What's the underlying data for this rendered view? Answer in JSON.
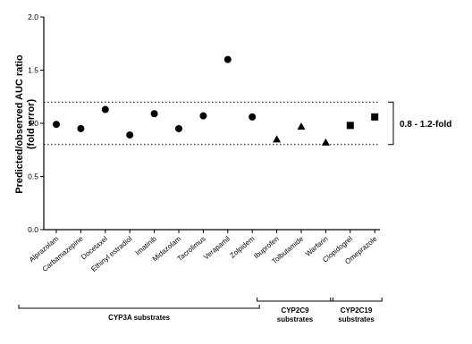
{
  "chart_data": {
    "type": "scatter",
    "ylabel_line1": "Predicted/observed AUC ratio",
    "ylabel_line2": "(fold error)",
    "ylim": [
      0.0,
      2.0
    ],
    "yticks": [
      "0.0",
      "0.5",
      "1.0",
      "1.5",
      "2.0"
    ],
    "ytick_values": [
      0.0,
      0.5,
      1.0,
      1.5,
      2.0
    ],
    "grid": false,
    "categories": [
      "Alprazolam",
      "Carbamazepine",
      "Docetaxel",
      "Ethinyl estradiol",
      "Imatinib",
      "Midazolam",
      "Tacrolimus",
      "Verapamil",
      "Zolpidem",
      "Ibuprofen",
      "Tolbutamide",
      "Warfarin",
      "Clopidogrel",
      "Omeprazole"
    ],
    "values": [
      0.99,
      0.95,
      1.13,
      0.89,
      1.09,
      0.95,
      1.07,
      1.6,
      1.06,
      0.85,
      0.97,
      0.82,
      0.98,
      1.06
    ],
    "markers": [
      "circle",
      "circle",
      "circle",
      "circle",
      "circle",
      "circle",
      "circle",
      "circle",
      "circle",
      "triangle",
      "triangle",
      "triangle",
      "square",
      "square"
    ],
    "reference_lines": [
      0.8,
      1.2
    ],
    "reference_line_style": "dotted",
    "range_annotation": "0.8 - 1.2-fold",
    "groups": [
      {
        "label": "CYP3A substrates",
        "label_line2": "",
        "start": 0,
        "end": 8
      },
      {
        "label": "CYP2C9",
        "label_line2": "substrates",
        "start": 9,
        "end": 11
      },
      {
        "label": "CYP2C19",
        "label_line2": "substrates",
        "start": 12,
        "end": 13
      }
    ],
    "marker_color": "#000000"
  }
}
